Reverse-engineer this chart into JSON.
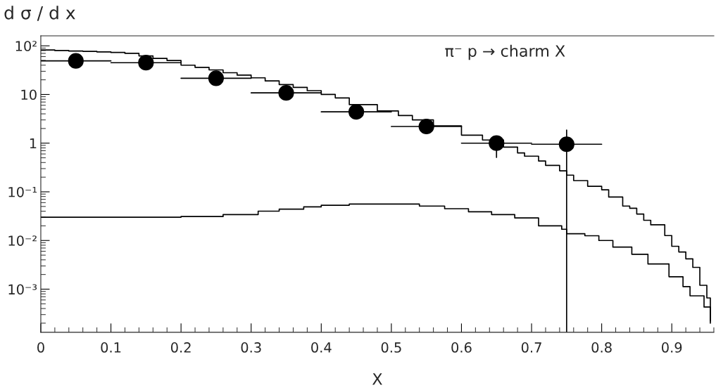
{
  "chart_data": {
    "type": "step",
    "title": "d σ / d x",
    "xlabel": "X",
    "annotations": [
      "π⁻ p → charm X"
    ],
    "log": "y",
    "xlim": [
      0,
      0.96
    ],
    "ylim": [
      0.00013,
      160
    ],
    "xticks": [
      0,
      0.1,
      0.2,
      0.3,
      0.4,
      0.5,
      0.6,
      0.7,
      0.8,
      0.9
    ],
    "yticks": [
      {
        "value": 0.001,
        "label": "10⁻³"
      },
      {
        "value": 0.01,
        "label": "10⁻²"
      },
      {
        "value": 0.1,
        "label": "10⁻¹"
      },
      1,
      10,
      {
        "value": 100,
        "label": "10²"
      }
    ],
    "grid": false,
    "series": [
      {
        "color": "#000000",
        "x": [
          0,
          0.02,
          0.04,
          0.06,
          0.08,
          0.1,
          0.12,
          0.14,
          0.16,
          0.18,
          0.2,
          0.22,
          0.24,
          0.26,
          0.28,
          0.3,
          0.32,
          0.34,
          0.36,
          0.38,
          0.4,
          0.42,
          0.44,
          0.48,
          0.51,
          0.53,
          0.56,
          0.6,
          0.63,
          0.66,
          0.68,
          0.69,
          0.71,
          0.72,
          0.74,
          0.75,
          0.76,
          0.78,
          0.8,
          0.81,
          0.83,
          0.84,
          0.85,
          0.86,
          0.87,
          0.89,
          0.9,
          0.91,
          0.92,
          0.93,
          0.94,
          0.95,
          0.955
        ],
        "values": [
          82,
          80,
          78,
          77,
          75,
          73,
          70,
          62,
          55,
          50,
          40,
          36,
          32,
          28,
          25,
          22,
          19,
          16,
          14,
          12,
          10,
          8.5,
          6.2,
          4.6,
          3.7,
          3.0,
          2.26,
          1.46,
          1.16,
          0.83,
          0.63,
          0.54,
          0.43,
          0.35,
          0.27,
          0.22,
          0.17,
          0.13,
          0.11,
          0.078,
          0.051,
          0.046,
          0.035,
          0.026,
          0.021,
          0.0126,
          0.0076,
          0.0058,
          0.0042,
          0.0028,
          0.0012,
          0.00066,
          0.00022
        ]
      },
      {
        "color": "#000000",
        "x": [
          0,
          0.2,
          0.26,
          0.31,
          0.34,
          0.375,
          0.4,
          0.44,
          0.54,
          0.576,
          0.61,
          0.643,
          0.676,
          0.71,
          0.743,
          0.75,
          0.776,
          0.796,
          0.816,
          0.843,
          0.866,
          0.896,
          0.916,
          0.926,
          0.946,
          0.955
        ],
        "values": [
          0.03,
          0.031,
          0.034,
          0.04,
          0.044,
          0.049,
          0.053,
          0.056,
          0.051,
          0.045,
          0.039,
          0.034,
          0.029,
          0.02,
          0.017,
          0.0138,
          0.0125,
          0.01,
          0.0073,
          0.0052,
          0.0033,
          0.0018,
          0.00113,
          0.00073,
          0.00043,
          0.0002
        ]
      },
      {
        "type": "scatter",
        "color": "#000000",
        "marker": "circle",
        "x": [
          0.05,
          0.15,
          0.25,
          0.35,
          0.45,
          0.55,
          0.65,
          0.75
        ],
        "values": [
          49,
          45,
          21.6,
          10.8,
          4.4,
          2.2,
          1.0,
          0.95
        ],
        "xerrors": [
          0.05,
          0.05,
          0.05,
          0.05,
          0.05,
          0.05,
          0.05,
          0.05
        ],
        "errors": [
          null,
          null,
          null,
          null,
          null,
          null,
          [
            0.51,
            1.3
          ],
          [
            0.00013,
            1.86
          ]
        ]
      }
    ]
  }
}
